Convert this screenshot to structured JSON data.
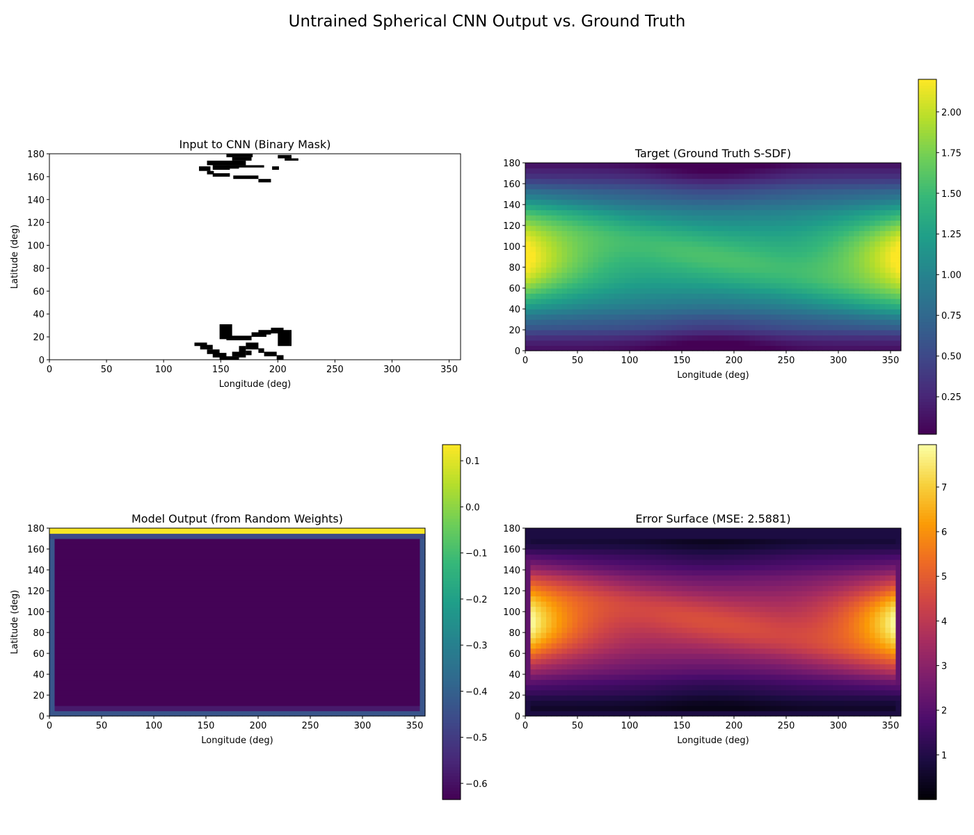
{
  "figure": {
    "title": "Untrained Spherical CNN Output vs. Ground Truth"
  },
  "chart_data": [
    {
      "id": "input",
      "type": "heatmap",
      "title": "Input to CNN (Binary Mask)",
      "xlabel": "Longitude (deg)",
      "ylabel": "Latitude (deg)",
      "xlim": [
        0,
        360
      ],
      "ylim": [
        0,
        180
      ],
      "xticks": [
        "0",
        "50",
        "100",
        "150",
        "200",
        "250",
        "300",
        "350"
      ],
      "yticks": [
        "0",
        "20",
        "40",
        "60",
        "80",
        "100",
        "120",
        "140",
        "160",
        "180"
      ],
      "colormap": "binary_r",
      "colors": {
        "background": "#ffffff",
        "mask": "#000000"
      },
      "mask_cells_deg": [
        {
          "lon0": 155,
          "lon1": 166,
          "lat0": 167,
          "lat1": 170
        },
        {
          "lon0": 131,
          "lon1": 141,
          "lat0": 165,
          "lat1": 169
        },
        {
          "lon0": 138,
          "lon1": 172,
          "lat0": 170,
          "lat1": 174
        },
        {
          "lon0": 160,
          "lon1": 177,
          "lat0": 174,
          "lat1": 177
        },
        {
          "lon0": 155,
          "lon1": 178,
          "lat0": 177,
          "lat1": 180
        },
        {
          "lon0": 143,
          "lon1": 158,
          "lat0": 166,
          "lat1": 170
        },
        {
          "lon0": 160,
          "lon1": 188,
          "lat0": 168,
          "lat1": 170
        },
        {
          "lon0": 195,
          "lon1": 201,
          "lat0": 166,
          "lat1": 169
        },
        {
          "lon0": 200,
          "lon1": 212,
          "lat0": 176,
          "lat1": 179
        },
        {
          "lon0": 206,
          "lon1": 218,
          "lat0": 174,
          "lat1": 176
        },
        {
          "lon0": 138,
          "lon1": 144,
          "lat0": 162,
          "lat1": 165
        },
        {
          "lon0": 143,
          "lon1": 158,
          "lat0": 160,
          "lat1": 163
        },
        {
          "lon0": 161,
          "lon1": 183,
          "lat0": 158,
          "lat1": 161
        },
        {
          "lon0": 183,
          "lon1": 194,
          "lat0": 155,
          "lat1": 158
        },
        {
          "lon0": 149,
          "lon1": 160,
          "lat0": 18,
          "lat1": 31
        },
        {
          "lon0": 155,
          "lon1": 177,
          "lat0": 17,
          "lat1": 21
        },
        {
          "lon0": 177,
          "lon1": 190,
          "lat0": 20,
          "lat1": 24
        },
        {
          "lon0": 183,
          "lon1": 194,
          "lat0": 22,
          "lat1": 26
        },
        {
          "lon0": 194,
          "lon1": 205,
          "lat0": 23,
          "lat1": 28
        },
        {
          "lon0": 200,
          "lon1": 212,
          "lat0": 12,
          "lat1": 26
        },
        {
          "lon0": 127,
          "lon1": 138,
          "lat0": 12,
          "lat1": 15
        },
        {
          "lon0": 132,
          "lon1": 143,
          "lat0": 9,
          "lat1": 13
        },
        {
          "lon0": 138,
          "lon1": 149,
          "lat0": 5,
          "lat1": 9
        },
        {
          "lon0": 143,
          "lon1": 155,
          "lat0": 2,
          "lat1": 6
        },
        {
          "lon0": 149,
          "lon1": 166,
          "lat0": 0,
          "lat1": 3
        },
        {
          "lon0": 160,
          "lon1": 166,
          "lat0": 3,
          "lat1": 7
        },
        {
          "lon0": 166,
          "lon1": 172,
          "lat0": 2,
          "lat1": 12
        },
        {
          "lon0": 172,
          "lon1": 183,
          "lat0": 9,
          "lat1": 15
        },
        {
          "lon0": 183,
          "lon1": 188,
          "lat0": 6,
          "lat1": 10
        },
        {
          "lon0": 188,
          "lon1": 199,
          "lat0": 3,
          "lat1": 7
        },
        {
          "lon0": 199,
          "lon1": 205,
          "lat0": 0,
          "lat1": 4
        },
        {
          "lon0": 172,
          "lon1": 177,
          "lat0": 4,
          "lat1": 8
        }
      ]
    },
    {
      "id": "target",
      "type": "heatmap",
      "title": "Target (Ground Truth S-SDF)",
      "xlabel": "Longitude (deg)",
      "ylabel": "",
      "xlim": [
        0,
        360
      ],
      "ylim": [
        0,
        180
      ],
      "xticks": [
        "0",
        "50",
        "100",
        "150",
        "200",
        "250",
        "300",
        "350"
      ],
      "yticks": [
        "0",
        "20",
        "40",
        "60",
        "80",
        "100",
        "120",
        "140",
        "160",
        "180"
      ],
      "colormap": "viridis",
      "vmin": 0.02,
      "vmax": 2.2,
      "colorbar_ticks": [
        "0.25",
        "0.50",
        "0.75",
        "1.00",
        "1.25",
        "1.50",
        "1.75",
        "2.00"
      ],
      "colorbar_tick_values": [
        0.25,
        0.5,
        0.75,
        1.0,
        1.25,
        1.5,
        1.75,
        2.0
      ]
    },
    {
      "id": "output",
      "type": "heatmap",
      "title": "Model Output (from Random Weights)",
      "xlabel": "Longitude (deg)",
      "ylabel": "Latitude (deg)",
      "xlim": [
        0,
        360
      ],
      "ylim": [
        0,
        180
      ],
      "xticks": [
        "0",
        "50",
        "100",
        "150",
        "200",
        "250",
        "300",
        "350"
      ],
      "yticks": [
        "0",
        "20",
        "40",
        "60",
        "80",
        "100",
        "120",
        "140",
        "160",
        "180"
      ],
      "colormap": "viridis",
      "vmin": -0.635,
      "vmax": 0.135,
      "interior_value": -0.63,
      "colorbar_ticks": [
        "−0.6",
        "−0.5",
        "−0.4",
        "−0.3",
        "−0.2",
        "−0.1",
        "0.0",
        "0.1"
      ],
      "colorbar_tick_values": [
        -0.6,
        -0.5,
        -0.4,
        -0.3,
        -0.2,
        -0.1,
        0.0,
        0.1
      ]
    },
    {
      "id": "error",
      "type": "heatmap",
      "title": "Error Surface (MSE: 2.5881)",
      "xlabel": "Longitude (deg)",
      "ylabel": "",
      "xlim": [
        0,
        360
      ],
      "ylim": [
        0,
        180
      ],
      "xticks": [
        "0",
        "50",
        "100",
        "150",
        "200",
        "250",
        "300",
        "350"
      ],
      "yticks": [
        "0",
        "20",
        "40",
        "60",
        "80",
        "100",
        "120",
        "140",
        "160",
        "180"
      ],
      "colormap": "inferno",
      "vmin": 0.0,
      "vmax": 7.95,
      "colorbar_ticks": [
        "1",
        "2",
        "3",
        "4",
        "5",
        "6",
        "7"
      ],
      "colorbar_tick_values": [
        1,
        2,
        3,
        4,
        5,
        6,
        7
      ]
    }
  ]
}
